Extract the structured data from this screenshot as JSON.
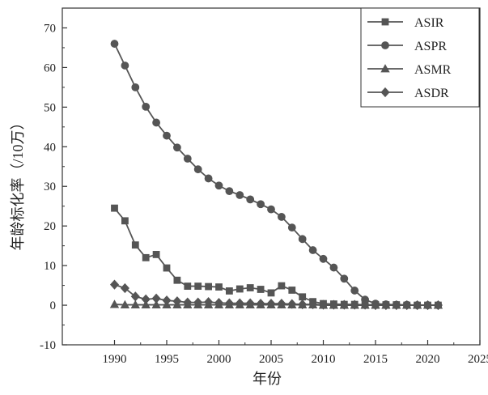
{
  "chart_data": {
    "type": "line",
    "xlabel": "年份",
    "ylabel": "年龄标化率（/10万）",
    "xlim": [
      1985,
      2025
    ],
    "ylim": [
      -10,
      75
    ],
    "x_ticks": [
      1990,
      1995,
      2000,
      2005,
      2010,
      2015,
      2020,
      2025
    ],
    "y_ticks": [
      -10,
      0,
      10,
      20,
      30,
      40,
      50,
      60,
      70
    ],
    "grid": false,
    "legend_position": "top-right",
    "line_color": "#555555",
    "x": [
      1990,
      1991,
      1992,
      1993,
      1994,
      1995,
      1996,
      1997,
      1998,
      1999,
      2000,
      2001,
      2002,
      2003,
      2004,
      2005,
      2006,
      2007,
      2008,
      2009,
      2010,
      2011,
      2012,
      2013,
      2014,
      2015,
      2016,
      2017,
      2018,
      2019,
      2020,
      2021
    ],
    "series": [
      {
        "name": "ASIR",
        "marker": "square",
        "values": [
          24.5,
          21.3,
          15.2,
          12.0,
          12.8,
          9.4,
          6.3,
          4.8,
          4.8,
          4.7,
          4.6,
          3.6,
          4.1,
          4.4,
          4.0,
          3.1,
          4.9,
          3.8,
          2.1,
          0.9,
          0.4,
          0.3,
          0.2,
          0.2,
          0.1,
          0.1,
          0.1,
          0.1,
          0.0,
          0.0,
          0.0,
          0.0
        ]
      },
      {
        "name": "ASPR",
        "marker": "circle",
        "values": [
          66.0,
          60.5,
          55.0,
          50.1,
          46.1,
          42.8,
          39.8,
          37.0,
          34.3,
          32.0,
          30.2,
          28.8,
          27.8,
          26.7,
          25.5,
          24.2,
          22.3,
          19.6,
          16.7,
          13.9,
          11.7,
          9.5,
          6.7,
          3.7,
          1.4,
          0.4,
          0.2,
          0.1,
          0.1,
          0.0,
          0.0,
          0.0
        ]
      },
      {
        "name": "ASMR",
        "marker": "triangle",
        "values": [
          0.2,
          0.1,
          0.1,
          0.1,
          0.1,
          0.1,
          0.1,
          0.1,
          0.1,
          0.1,
          0.1,
          0.1,
          0.1,
          0.1,
          0.1,
          0.1,
          0.1,
          0.1,
          0.1,
          0.1,
          0.0,
          0.0,
          0.0,
          0.0,
          0.0,
          0.0,
          0.0,
          0.0,
          0.0,
          0.0,
          0.0,
          0.0
        ]
      },
      {
        "name": "ASDR",
        "marker": "diamond",
        "values": [
          5.2,
          4.3,
          2.2,
          1.5,
          1.7,
          1.2,
          1.0,
          0.7,
          0.7,
          0.8,
          0.6,
          0.5,
          0.5,
          0.5,
          0.4,
          0.4,
          0.4,
          0.3,
          0.2,
          0.2,
          0.1,
          0.1,
          0.1,
          0.1,
          0.1,
          0.0,
          0.0,
          0.0,
          0.0,
          0.0,
          0.0,
          0.0
        ]
      }
    ]
  }
}
